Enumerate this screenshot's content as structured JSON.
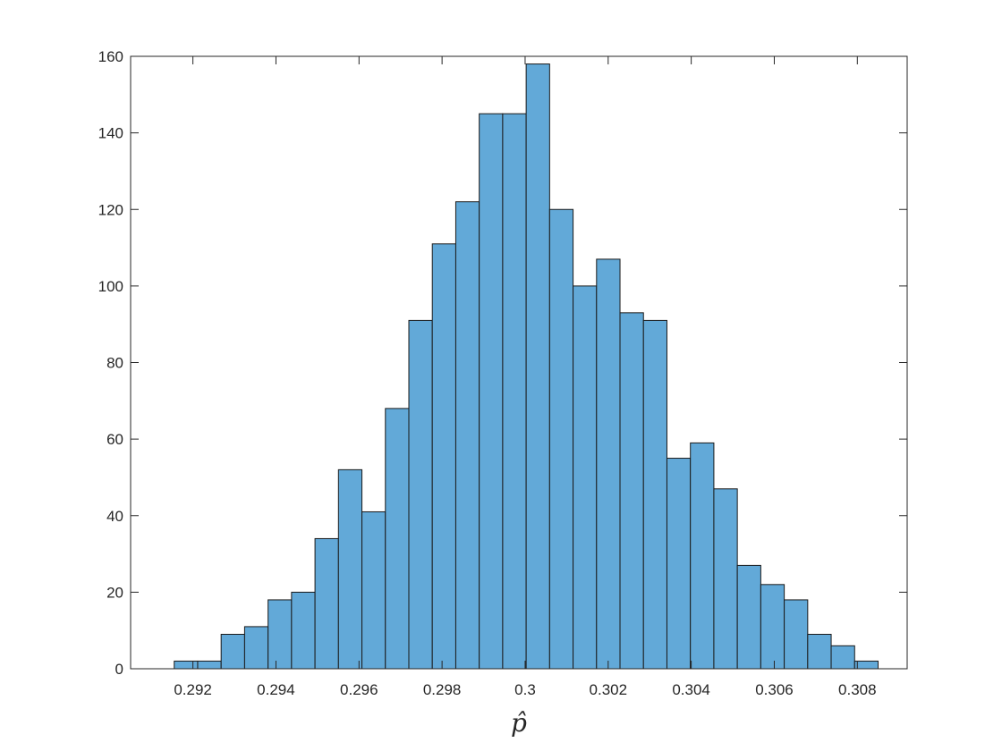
{
  "chart_data": {
    "type": "bar",
    "subtype": "histogram",
    "title": "",
    "xlabel": "p̂",
    "ylabel": "",
    "xlim": [
      0.2905,
      0.3092
    ],
    "ylim": [
      0,
      160
    ],
    "xticks": [
      0.292,
      0.294,
      0.296,
      0.298,
      0.3,
      0.302,
      0.304,
      0.306,
      0.308
    ],
    "xtick_labels": [
      "0.292",
      "0.294",
      "0.296",
      "0.298",
      "0.3",
      "0.302",
      "0.304",
      "0.306",
      "0.308"
    ],
    "yticks": [
      0,
      20,
      40,
      60,
      80,
      100,
      120,
      140,
      160
    ],
    "ytick_labels": [
      "0",
      "20",
      "40",
      "60",
      "80",
      "100",
      "120",
      "140",
      "160"
    ],
    "bin_start": 0.29155,
    "bin_width": 0.000565,
    "values": [
      2,
      2,
      9,
      11,
      18,
      20,
      34,
      52,
      41,
      68,
      91,
      111,
      122,
      145,
      145,
      158,
      120,
      100,
      107,
      93,
      91,
      55,
      59,
      47,
      27,
      22,
      18,
      9,
      6,
      2
    ],
    "grid": false,
    "colors": {
      "bar_fill": "#62a9d8",
      "bar_edge": "#1a1a1a",
      "axis": "#262626"
    }
  }
}
